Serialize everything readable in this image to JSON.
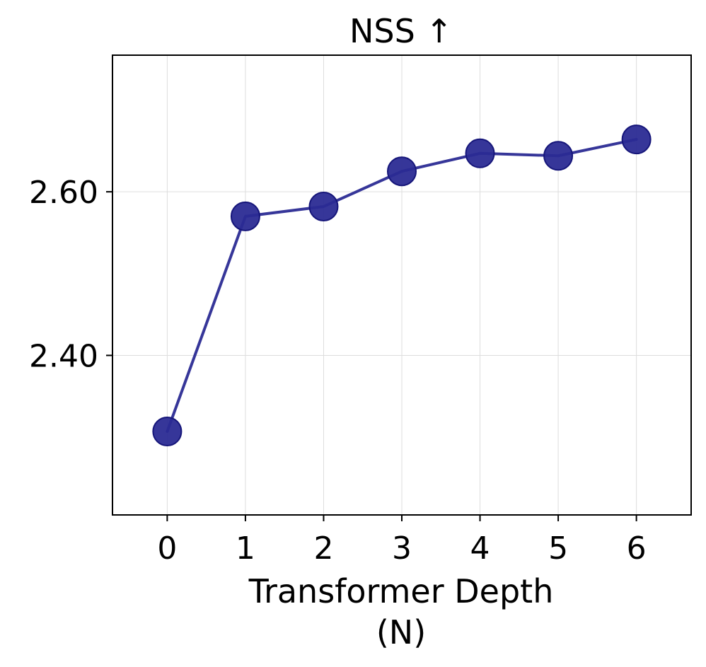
{
  "chart_data": {
    "type": "line",
    "title": "NSS ↑",
    "xlabel_line1": "Transformer Depth",
    "xlabel_line2": "(N)",
    "ylabel": "",
    "x": [
      0,
      1,
      2,
      3,
      4,
      5,
      6
    ],
    "x_ticks": [
      "0",
      "1",
      "2",
      "3",
      "4",
      "5",
      "6"
    ],
    "y_ticks": [
      "2.40",
      "2.60"
    ],
    "y_tick_values": [
      2.4,
      2.6
    ],
    "xlim": [
      -0.7,
      6.7
    ],
    "ylim": [
      2.205,
      2.767
    ],
    "grid": true,
    "series": [
      {
        "values": [
          2.307,
          2.57,
          2.582,
          2.625,
          2.647,
          2.644,
          2.664
        ]
      }
    ],
    "colors": {
      "line": "#2b2b94",
      "marker": "#2b2b94",
      "marker_edge": "#16167a",
      "grid": "#dddddd"
    }
  }
}
